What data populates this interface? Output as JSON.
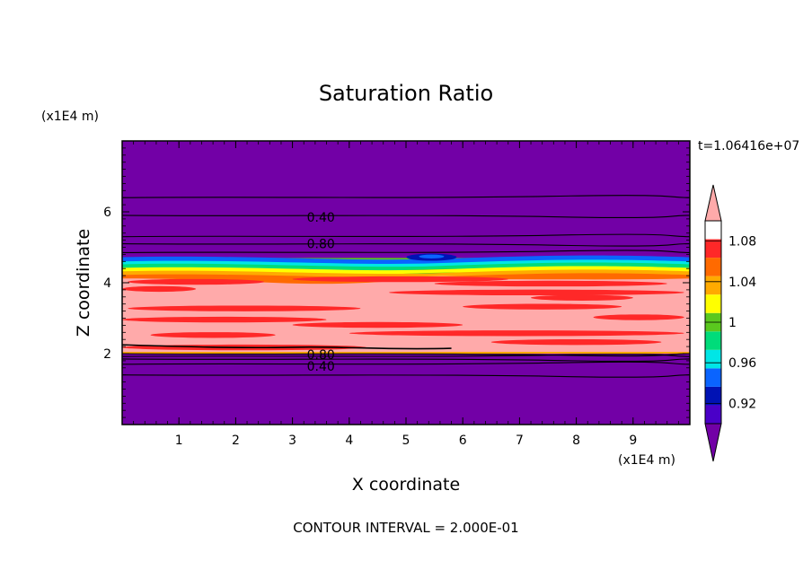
{
  "chart_data": {
    "type": "contour",
    "title": "Saturation Ratio",
    "xlabel": "X coordinate",
    "ylabel": "Z coordinate",
    "x_units": "(x1E4 m)",
    "y_units": "(x1E4 m)",
    "time_label": "t=1.06416e+07",
    "footer": "CONTOUR INTERVAL = 2.000E-01",
    "xlim": [
      0,
      10
    ],
    "ylim": [
      0,
      8
    ],
    "x_ticks": [
      1,
      2,
      3,
      4,
      5,
      6,
      7,
      8,
      9
    ],
    "y_ticks": [
      2,
      4,
      6
    ],
    "contour_labels": [
      {
        "text": "0.40",
        "x": 3.5,
        "z": 5.85
      },
      {
        "text": "0.80",
        "x": 3.5,
        "z": 5.1
      },
      {
        "text": "0.80",
        "x": 3.5,
        "z": 1.98
      },
      {
        "text": "0.40",
        "x": 3.5,
        "z": 1.65
      }
    ],
    "colorbar": {
      "colors": [
        "#7200a6",
        "#4a00c8",
        "#0012b4",
        "#0a64ff",
        "#00e6e6",
        "#00dc7a",
        "#5ac81e",
        "#ffff00",
        "#ffaa00",
        "#ff6a00",
        "#ff2828",
        "#ffaaaa"
      ],
      "tick_labels": [
        "0.92",
        "0.96",
        "1",
        "1.04",
        "1.08"
      ],
      "ticks": [
        0.92,
        0.96,
        1.0,
        1.04,
        1.08
      ],
      "min": 0.9,
      "max": 1.1
    },
    "bands": [
      {
        "name": "upper-dry",
        "z0": 5.0,
        "z1": 8.0,
        "color": "#7200a6"
      },
      {
        "name": "cloud-top-transition",
        "z0": 4.25,
        "z1": 4.7,
        "color": "#5ac81e"
      },
      {
        "name": "saturated-layer",
        "z0": 2.05,
        "z1": 4.25,
        "color": "#ffaaaa"
      },
      {
        "name": "lower-dry",
        "z0": 0.0,
        "z1": 2.05,
        "color": "#7200a6"
      }
    ]
  }
}
